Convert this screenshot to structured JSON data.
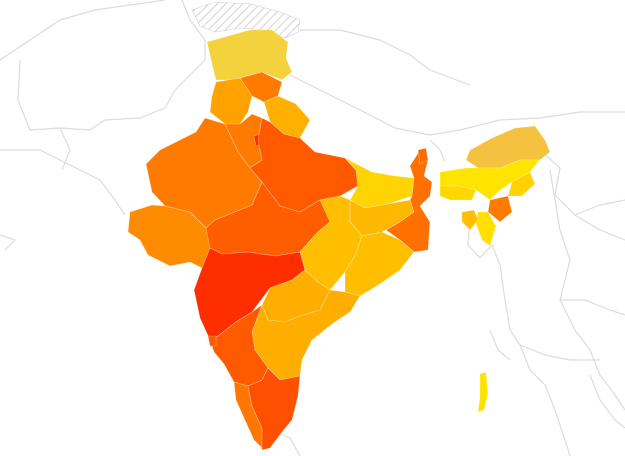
{
  "map": {
    "type": "choropleth",
    "country": "India",
    "scale_colors": {
      "low": "#ffee00",
      "mid_low": "#ffc300",
      "mid": "#ffa500",
      "mid_high": "#ff7a00",
      "high": "#ff5400",
      "highest": "#ff2a00"
    },
    "disputed_area_pattern": "hatched-grey",
    "neighbouring_borders_color": "#dcdcdc",
    "regions": [
      {
        "id": "jammu-kashmir",
        "level": "low-mid",
        "color": "#f4d23e"
      },
      {
        "id": "himachal-pradesh",
        "level": "high",
        "color": "#ff7a00"
      },
      {
        "id": "punjab",
        "level": "mid",
        "color": "#ffa200"
      },
      {
        "id": "uttarakhand",
        "level": "mid",
        "color": "#ffb000"
      },
      {
        "id": "haryana",
        "level": "high",
        "color": "#ff7a00"
      },
      {
        "id": "delhi",
        "level": "highest",
        "color": "#ff2a00"
      },
      {
        "id": "rajasthan",
        "level": "high",
        "color": "#ff7a00"
      },
      {
        "id": "uttar-pradesh",
        "level": "high",
        "color": "#ff5a00"
      },
      {
        "id": "gujarat",
        "level": "mid-high",
        "color": "#ff8c00"
      },
      {
        "id": "madhya-pradesh",
        "level": "high",
        "color": "#ff5e00"
      },
      {
        "id": "bihar",
        "level": "low",
        "color": "#ffd400"
      },
      {
        "id": "jharkhand",
        "level": "mid",
        "color": "#ffb800"
      },
      {
        "id": "west-bengal",
        "level": "high",
        "color": "#ff7000"
      },
      {
        "id": "chhattisgarh",
        "level": "mid",
        "color": "#ffbf00"
      },
      {
        "id": "odisha",
        "level": "mid",
        "color": "#ffbf00"
      },
      {
        "id": "maharashtra",
        "level": "highest",
        "color": "#ff2e00"
      },
      {
        "id": "telangana",
        "level": "mid",
        "color": "#ffae00"
      },
      {
        "id": "andhra-pradesh",
        "level": "mid",
        "color": "#ffae00"
      },
      {
        "id": "karnataka",
        "level": "high",
        "color": "#ff5a00"
      },
      {
        "id": "goa",
        "level": "high",
        "color": "#ff5a00"
      },
      {
        "id": "kerala",
        "level": "high",
        "color": "#ff7600"
      },
      {
        "id": "tamil-nadu",
        "level": "high",
        "color": "#ff5000"
      },
      {
        "id": "sikkim",
        "level": "high",
        "color": "#ff6a00"
      },
      {
        "id": "arunachal-pradesh",
        "level": "low-mid",
        "color": "#f4c23e"
      },
      {
        "id": "assam",
        "level": "low",
        "color": "#ffe400"
      },
      {
        "id": "meghalaya",
        "level": "low",
        "color": "#ffd800"
      },
      {
        "id": "nagaland",
        "level": "low",
        "color": "#ffd200"
      },
      {
        "id": "manipur",
        "level": "high",
        "color": "#ff7a00"
      },
      {
        "id": "mizoram",
        "level": "low",
        "color": "#ffe000"
      },
      {
        "id": "tripura",
        "level": "mid",
        "color": "#ffbf00"
      },
      {
        "id": "andaman-nicobar",
        "level": "low",
        "color": "#ffe000"
      }
    ]
  }
}
